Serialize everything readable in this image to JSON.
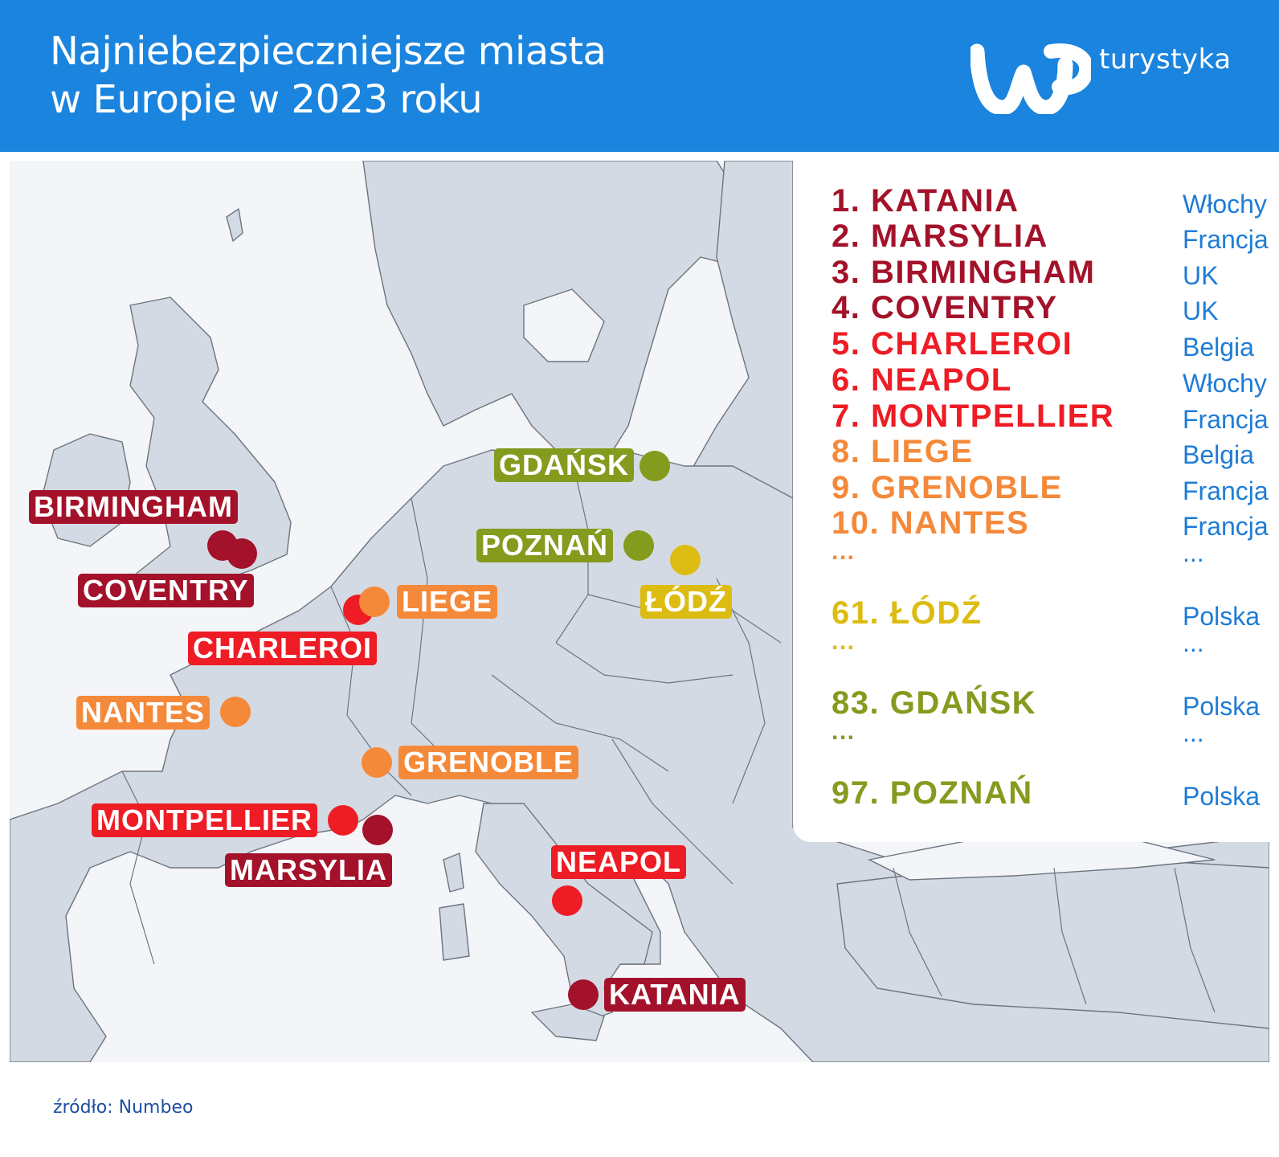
{
  "header": {
    "title_line1": "Najniebezpieczniejsze miasta",
    "title_line2": "w Europie w 2023 roku",
    "brand": "turystyka",
    "logo_icon": "wp-logo-icon",
    "bg_color": "#1a84de"
  },
  "colors": {
    "rank1_4": "#a3122a",
    "rank5_7": "#ee1c25",
    "rank8_10": "#f5893a",
    "lodz": "#ddbc12",
    "green": "#849b1e",
    "country": "#1e7cd6"
  },
  "map_labels": [
    {
      "key": "birmingham",
      "text": "BIRMINGHAM"
    },
    {
      "key": "coventry",
      "text": "COVENTRY"
    },
    {
      "key": "liege",
      "text": "LIEGE"
    },
    {
      "key": "charleroi",
      "text": "CHARLEROI"
    },
    {
      "key": "nantes",
      "text": "NANTES"
    },
    {
      "key": "grenoble",
      "text": "GRENOBLE"
    },
    {
      "key": "montpellier",
      "text": "MONTPELLIER"
    },
    {
      "key": "marsylia",
      "text": "MARSYLIA"
    },
    {
      "key": "neapol",
      "text": "NEAPOL"
    },
    {
      "key": "katania",
      "text": "KATANIA"
    },
    {
      "key": "gdansk",
      "text": "GDAŃSK"
    },
    {
      "key": "poznan",
      "text": "POZNAŃ"
    },
    {
      "key": "lodz",
      "text": "ŁÓDŹ"
    }
  ],
  "ranking": [
    {
      "rank": "1. KATANIA",
      "country": "Włochy"
    },
    {
      "rank": "2. MARSYLIA",
      "country": "Francja"
    },
    {
      "rank": "3. BIRMINGHAM",
      "country": "UK"
    },
    {
      "rank": "4. COVENTRY",
      "country": "UK"
    },
    {
      "rank": "5. CHARLEROI",
      "country": "Belgia"
    },
    {
      "rank": "6. NEAPOL",
      "country": "Włochy"
    },
    {
      "rank": "7. MONTPELLIER",
      "country": "Francja"
    },
    {
      "rank": "8. LIEGE",
      "country": "Belgia"
    },
    {
      "rank": "9. GRENOBLE",
      "country": "Francja"
    },
    {
      "rank": "10. NANTES",
      "country": "Francja"
    },
    {
      "rank": "...",
      "country": "..."
    },
    {
      "rank": "61. ŁÓDŹ",
      "country": "Polska"
    },
    {
      "rank": "...",
      "country": "..."
    },
    {
      "rank": "83. GDAŃSK",
      "country": "Polska"
    },
    {
      "rank": "...",
      "country": "..."
    },
    {
      "rank": "97. POZNAŃ",
      "country": "Polska"
    }
  ],
  "source": "źródło: Numbeo"
}
